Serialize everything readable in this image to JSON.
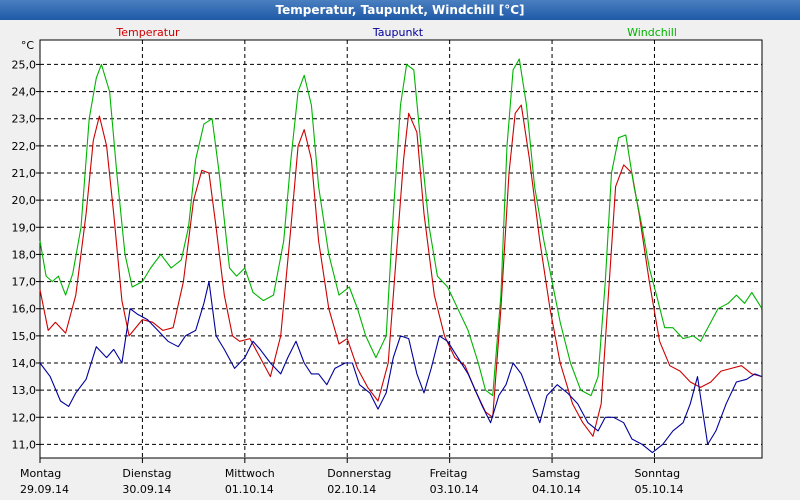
{
  "window": {
    "title": "Temperatur, Taupunkt, Windchill [°C]"
  },
  "chart_data": {
    "type": "line",
    "title": "Temperatur, Taupunkt, Windchill [°C]",
    "ylabel": "°C",
    "xlabel": "",
    "ylim": [
      10.5,
      25.9
    ],
    "grid": true,
    "yticks": [
      "25,0",
      "24,0",
      "23,0",
      "22,0",
      "21,0",
      "20,0",
      "19,0",
      "18,0",
      "17,0",
      "16,0",
      "15,0",
      "14,0",
      "13,0",
      "12,0",
      "11,0"
    ],
    "ytick_values": [
      25,
      24,
      23,
      22,
      21,
      20,
      19,
      18,
      17,
      16,
      15,
      14,
      13,
      12,
      11
    ],
    "days": [
      {
        "weekday": "Montag",
        "date": "29.09.14"
      },
      {
        "weekday": "Dienstag",
        "date": "30.09.14"
      },
      {
        "weekday": "Mittwoch",
        "date": "01.10.14"
      },
      {
        "weekday": "Donnerstag",
        "date": "02.10.14"
      },
      {
        "weekday": "Freitag",
        "date": "03.10.14"
      },
      {
        "weekday": "Samstag",
        "date": "04.10.14"
      },
      {
        "weekday": "Sonntag",
        "date": "05.10.14"
      }
    ],
    "x_unit": "days since 29.09.14 00:00",
    "xlim": [
      0,
      7.05
    ],
    "series": [
      {
        "name": "Temperatur",
        "color": "#cc0000",
        "points": [
          [
            0.0,
            16.7
          ],
          [
            0.08,
            15.2
          ],
          [
            0.15,
            15.5
          ],
          [
            0.25,
            15.1
          ],
          [
            0.35,
            16.5
          ],
          [
            0.45,
            19.5
          ],
          [
            0.52,
            22.2
          ],
          [
            0.58,
            23.1
          ],
          [
            0.65,
            22.0
          ],
          [
            0.72,
            19.5
          ],
          [
            0.8,
            16.3
          ],
          [
            0.87,
            15.0
          ],
          [
            1.0,
            15.6
          ],
          [
            1.1,
            15.5
          ],
          [
            1.2,
            15.2
          ],
          [
            1.3,
            15.3
          ],
          [
            1.4,
            17.0
          ],
          [
            1.5,
            20.0
          ],
          [
            1.58,
            21.1
          ],
          [
            1.65,
            21.0
          ],
          [
            1.72,
            19.0
          ],
          [
            1.8,
            16.5
          ],
          [
            1.88,
            15.0
          ],
          [
            1.95,
            14.8
          ],
          [
            2.05,
            14.9
          ],
          [
            2.15,
            14.2
          ],
          [
            2.25,
            13.5
          ],
          [
            2.35,
            15.0
          ],
          [
            2.45,
            19.0
          ],
          [
            2.52,
            22.0
          ],
          [
            2.58,
            22.6
          ],
          [
            2.65,
            21.5
          ],
          [
            2.72,
            18.5
          ],
          [
            2.82,
            16.0
          ],
          [
            2.92,
            14.7
          ],
          [
            3.0,
            14.9
          ],
          [
            3.1,
            13.8
          ],
          [
            3.2,
            13.1
          ],
          [
            3.3,
            12.6
          ],
          [
            3.4,
            14.0
          ],
          [
            3.48,
            18.0
          ],
          [
            3.55,
            21.5
          ],
          [
            3.6,
            23.2
          ],
          [
            3.68,
            22.5
          ],
          [
            3.75,
            19.5
          ],
          [
            3.85,
            16.5
          ],
          [
            3.95,
            15.0
          ],
          [
            4.05,
            14.2
          ],
          [
            4.15,
            13.9
          ],
          [
            4.25,
            13.0
          ],
          [
            4.35,
            12.2
          ],
          [
            4.42,
            12.0
          ],
          [
            4.5,
            16.0
          ],
          [
            4.58,
            21.0
          ],
          [
            4.64,
            23.2
          ],
          [
            4.7,
            23.5
          ],
          [
            4.78,
            21.5
          ],
          [
            4.88,
            18.5
          ],
          [
            4.98,
            16.0
          ],
          [
            5.08,
            14.0
          ],
          [
            5.2,
            12.5
          ],
          [
            5.3,
            11.8
          ],
          [
            5.4,
            11.3
          ],
          [
            5.48,
            12.5
          ],
          [
            5.55,
            16.5
          ],
          [
            5.62,
            20.5
          ],
          [
            5.7,
            21.3
          ],
          [
            5.78,
            21.0
          ],
          [
            5.85,
            19.5
          ],
          [
            5.95,
            17.0
          ],
          [
            6.05,
            14.8
          ],
          [
            6.15,
            13.9
          ],
          [
            6.25,
            13.7
          ],
          [
            6.35,
            13.3
          ],
          [
            6.45,
            13.1
          ],
          [
            6.55,
            13.3
          ],
          [
            6.65,
            13.7
          ],
          [
            6.75,
            13.8
          ],
          [
            6.85,
            13.9
          ],
          [
            6.95,
            13.6
          ],
          [
            7.05,
            13.5
          ]
        ]
      },
      {
        "name": "Taupunkt",
        "color": "#00009c",
        "points": [
          [
            0.0,
            14.0
          ],
          [
            0.1,
            13.5
          ],
          [
            0.2,
            12.6
          ],
          [
            0.28,
            12.4
          ],
          [
            0.35,
            12.9
          ],
          [
            0.45,
            13.4
          ],
          [
            0.55,
            14.6
          ],
          [
            0.65,
            14.2
          ],
          [
            0.72,
            14.5
          ],
          [
            0.8,
            14.0
          ],
          [
            0.88,
            16.0
          ],
          [
            0.95,
            15.8
          ],
          [
            1.05,
            15.6
          ],
          [
            1.15,
            15.2
          ],
          [
            1.25,
            14.8
          ],
          [
            1.35,
            14.6
          ],
          [
            1.42,
            15.0
          ],
          [
            1.52,
            15.2
          ],
          [
            1.6,
            16.2
          ],
          [
            1.65,
            17.0
          ],
          [
            1.72,
            15.0
          ],
          [
            1.8,
            14.5
          ],
          [
            1.9,
            13.8
          ],
          [
            2.0,
            14.2
          ],
          [
            2.08,
            14.8
          ],
          [
            2.15,
            14.5
          ],
          [
            2.25,
            14.0
          ],
          [
            2.35,
            13.6
          ],
          [
            2.42,
            14.2
          ],
          [
            2.5,
            14.8
          ],
          [
            2.58,
            14.0
          ],
          [
            2.65,
            13.6
          ],
          [
            2.72,
            13.6
          ],
          [
            2.8,
            13.2
          ],
          [
            2.88,
            13.8
          ],
          [
            2.98,
            14.0
          ],
          [
            3.05,
            14.0
          ],
          [
            3.12,
            13.2
          ],
          [
            3.22,
            12.9
          ],
          [
            3.3,
            12.3
          ],
          [
            3.38,
            12.9
          ],
          [
            3.45,
            14.2
          ],
          [
            3.52,
            15.0
          ],
          [
            3.6,
            14.9
          ],
          [
            3.68,
            13.6
          ],
          [
            3.75,
            12.9
          ],
          [
            3.82,
            13.8
          ],
          [
            3.9,
            15.0
          ],
          [
            3.98,
            14.8
          ],
          [
            4.08,
            14.2
          ],
          [
            4.18,
            13.6
          ],
          [
            4.25,
            13.0
          ],
          [
            4.32,
            12.4
          ],
          [
            4.4,
            11.8
          ],
          [
            4.48,
            12.8
          ],
          [
            4.55,
            13.2
          ],
          [
            4.62,
            14.0
          ],
          [
            4.7,
            13.6
          ],
          [
            4.8,
            12.6
          ],
          [
            4.88,
            11.8
          ],
          [
            4.95,
            12.8
          ],
          [
            5.05,
            13.2
          ],
          [
            5.15,
            12.9
          ],
          [
            5.25,
            12.5
          ],
          [
            5.35,
            11.8
          ],
          [
            5.45,
            11.5
          ],
          [
            5.52,
            12.0
          ],
          [
            5.6,
            12.0
          ],
          [
            5.7,
            11.8
          ],
          [
            5.78,
            11.2
          ],
          [
            5.88,
            11.0
          ],
          [
            5.98,
            10.7
          ],
          [
            6.08,
            11.0
          ],
          [
            6.18,
            11.5
          ],
          [
            6.28,
            11.8
          ],
          [
            6.35,
            12.5
          ],
          [
            6.42,
            13.5
          ],
          [
            6.48,
            12.0
          ],
          [
            6.52,
            11.0
          ],
          [
            6.6,
            11.5
          ],
          [
            6.7,
            12.5
          ],
          [
            6.8,
            13.3
          ],
          [
            6.9,
            13.4
          ],
          [
            6.98,
            13.6
          ],
          [
            7.05,
            13.5
          ]
        ]
      },
      {
        "name": "Windchill",
        "color": "#00b400",
        "points": [
          [
            0.0,
            18.5
          ],
          [
            0.06,
            17.2
          ],
          [
            0.12,
            17.0
          ],
          [
            0.18,
            17.2
          ],
          [
            0.25,
            16.5
          ],
          [
            0.32,
            17.3
          ],
          [
            0.4,
            19.0
          ],
          [
            0.48,
            23.0
          ],
          [
            0.55,
            24.5
          ],
          [
            0.6,
            25.0
          ],
          [
            0.68,
            24.0
          ],
          [
            0.75,
            21.0
          ],
          [
            0.83,
            18.0
          ],
          [
            0.9,
            16.8
          ],
          [
            1.0,
            17.0
          ],
          [
            1.08,
            17.5
          ],
          [
            1.18,
            18.0
          ],
          [
            1.28,
            17.5
          ],
          [
            1.38,
            17.8
          ],
          [
            1.45,
            19.0
          ],
          [
            1.52,
            21.5
          ],
          [
            1.6,
            22.8
          ],
          [
            1.68,
            23.0
          ],
          [
            1.75,
            21.0
          ],
          [
            1.85,
            17.5
          ],
          [
            1.92,
            17.2
          ],
          [
            2.0,
            17.5
          ],
          [
            2.08,
            16.6
          ],
          [
            2.18,
            16.3
          ],
          [
            2.28,
            16.5
          ],
          [
            2.38,
            18.5
          ],
          [
            2.45,
            21.5
          ],
          [
            2.52,
            24.0
          ],
          [
            2.58,
            24.6
          ],
          [
            2.65,
            23.5
          ],
          [
            2.72,
            20.5
          ],
          [
            2.82,
            18.0
          ],
          [
            2.92,
            16.5
          ],
          [
            3.02,
            16.8
          ],
          [
            3.1,
            16.0
          ],
          [
            3.18,
            15.0
          ],
          [
            3.28,
            14.2
          ],
          [
            3.38,
            15.0
          ],
          [
            3.45,
            19.5
          ],
          [
            3.52,
            23.5
          ],
          [
            3.58,
            25.0
          ],
          [
            3.65,
            24.8
          ],
          [
            3.72,
            22.0
          ],
          [
            3.8,
            19.0
          ],
          [
            3.88,
            17.2
          ],
          [
            3.98,
            16.8
          ],
          [
            4.08,
            16.0
          ],
          [
            4.18,
            15.2
          ],
          [
            4.28,
            14.0
          ],
          [
            4.35,
            13.0
          ],
          [
            4.42,
            12.8
          ],
          [
            4.5,
            16.5
          ],
          [
            4.56,
            22.0
          ],
          [
            4.62,
            24.8
          ],
          [
            4.68,
            25.2
          ],
          [
            4.75,
            23.5
          ],
          [
            4.83,
            20.5
          ],
          [
            4.92,
            18.5
          ],
          [
            5.0,
            17.0
          ],
          [
            5.08,
            15.5
          ],
          [
            5.18,
            14.0
          ],
          [
            5.28,
            13.0
          ],
          [
            5.38,
            12.8
          ],
          [
            5.45,
            13.5
          ],
          [
            5.52,
            17.0
          ],
          [
            5.58,
            21.0
          ],
          [
            5.65,
            22.3
          ],
          [
            5.72,
            22.4
          ],
          [
            5.8,
            20.5
          ],
          [
            5.88,
            19.0
          ],
          [
            5.95,
            17.5
          ],
          [
            6.02,
            16.5
          ],
          [
            6.1,
            15.3
          ],
          [
            6.18,
            15.3
          ],
          [
            6.28,
            14.9
          ],
          [
            6.38,
            15.0
          ],
          [
            6.45,
            14.8
          ],
          [
            6.55,
            15.5
          ],
          [
            6.62,
            16.0
          ],
          [
            6.72,
            16.2
          ],
          [
            6.8,
            16.5
          ],
          [
            6.88,
            16.2
          ],
          [
            6.95,
            16.6
          ],
          [
            7.05,
            16.0
          ]
        ]
      }
    ]
  }
}
